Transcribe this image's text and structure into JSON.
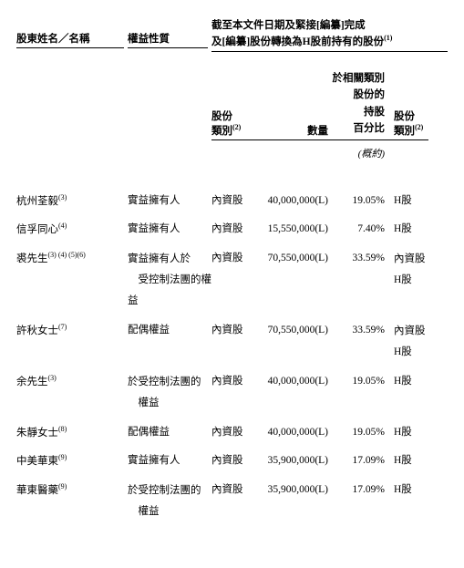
{
  "header": {
    "shareholder_name": "股東姓名／名稱",
    "interest_nature": "權益性質",
    "shares_group_l1": "截至本文件日期及緊接[編纂]完成",
    "shares_group_l2": "及[編纂]股份轉換為H股前持有的股份",
    "shares_group_note": "(1)"
  },
  "subheader": {
    "class_l1": "股份",
    "class_l2": "類別",
    "class_note": "(2)",
    "qty": "數量",
    "pct_l1": "於相關類別",
    "pct_l2": "股份的",
    "pct_l3": "持股",
    "pct_l4": "百分比",
    "class2_l1": "股份",
    "class2_l2": "類別",
    "class2_note": "(2)",
    "approx": "(概約)"
  },
  "rows": [
    {
      "name": "杭州荃毅",
      "name_note": "(3)",
      "nature": "實益擁有人",
      "class": "內資股",
      "qty": "40,000,000(L)",
      "pct": "19.05%",
      "class2": [
        "H股"
      ]
    },
    {
      "name": "信孚同心",
      "name_note": "(4)",
      "nature": "實益擁有人",
      "class": "內資股",
      "qty": "15,550,000(L)",
      "pct": "7.40%",
      "class2": [
        "H股"
      ]
    },
    {
      "name": "裘先生",
      "name_note": "(3) (4) (5)(6)",
      "nature_l1": "實益擁有人於",
      "nature_l2": "受控制法團的權益",
      "class": "內資股",
      "qty": "70,550,000(L)",
      "pct": "33.59%",
      "class2": [
        "內資股",
        "H股"
      ]
    },
    {
      "name": "許秋女士",
      "name_note": "(7)",
      "nature": "配偶權益",
      "class": "內資股",
      "qty": "70,550,000(L)",
      "pct": "33.59%",
      "class2": [
        "內資股",
        "H股"
      ]
    },
    {
      "name": "余先生",
      "name_note": "(3)",
      "nature_l1": "於受控制法團的",
      "nature_l2": "權益",
      "class": "內資股",
      "qty": "40,000,000(L)",
      "pct": "19.05%",
      "class2": [
        "H股"
      ]
    },
    {
      "name": "朱靜女士",
      "name_note": "(8)",
      "nature": "配偶權益",
      "class": "內資股",
      "qty": "40,000,000(L)",
      "pct": "19.05%",
      "class2": [
        "H股"
      ]
    },
    {
      "name": "中美華東",
      "name_note": "(9)",
      "nature": "實益擁有人",
      "class": "內資股",
      "qty": "35,900,000(L)",
      "pct": "17.09%",
      "class2": [
        "H股"
      ]
    },
    {
      "name": "華東醫藥",
      "name_note": "(9)",
      "nature_l1": "於受控制法團的",
      "nature_l2": "權益",
      "class": "內資股",
      "qty": "35,900,000(L)",
      "pct": "17.09%",
      "class2": [
        "H股"
      ]
    }
  ]
}
